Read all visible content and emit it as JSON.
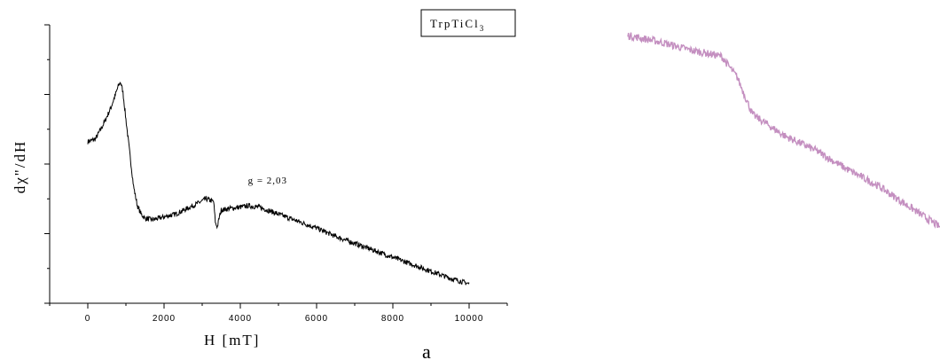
{
  "chart_data": [
    {
      "type": "line",
      "xlabel": "H  [mT]",
      "ylabel": "dχ\"/dH",
      "xlim": [
        -1000,
        11000
      ],
      "ylim": [
        0,
        10
      ],
      "x_ticks": [
        0,
        2000,
        4000,
        6000,
        8000,
        10000
      ],
      "x_tick_labels": [
        "0",
        "2000",
        "4000",
        "6000",
        "8000",
        "10000"
      ],
      "y_tick_labels_shown": false,
      "legend": {
        "text": "TrpTiCl",
        "subscript": "3",
        "position": "top-right"
      },
      "annotation": {
        "text": "g = 2,03",
        "x": 4200,
        "y": 4.3
      },
      "panel_label": "a",
      "series": [
        {
          "color": "#000000",
          "x": [
            0,
            200,
            400,
            600,
            700,
            800,
            860,
            920,
            1000,
            1100,
            1200,
            1300,
            1400,
            1500,
            1700,
            2000,
            2300,
            2600,
            2900,
            3100,
            3300,
            3350,
            3400,
            3450,
            3500,
            3700,
            4000,
            4200,
            4500,
            5000,
            5500,
            6000,
            6500,
            7000,
            7500,
            8000,
            8500,
            9000,
            9500,
            10000
          ],
          "y": [
            5.8,
            5.9,
            6.4,
            7.0,
            7.4,
            7.8,
            7.95,
            7.6,
            6.6,
            5.4,
            4.2,
            3.5,
            3.2,
            3.05,
            3.0,
            3.1,
            3.2,
            3.4,
            3.6,
            3.75,
            3.65,
            2.85,
            2.75,
            3.1,
            3.35,
            3.4,
            3.45,
            3.5,
            3.45,
            3.2,
            2.95,
            2.7,
            2.4,
            2.15,
            1.9,
            1.65,
            1.4,
            1.15,
            0.9,
            0.7
          ],
          "noise": 0.09
        }
      ]
    },
    {
      "type": "line",
      "series": [
        {
          "color": "#c48fc0",
          "x": [
            0,
            0.1,
            0.2,
            0.3,
            0.35,
            0.4,
            0.45,
            0.5,
            0.6,
            0.7,
            0.8,
            0.9,
            1.0
          ],
          "y": [
            1.0,
            0.97,
            0.93,
            0.9,
            0.8,
            0.62,
            0.57,
            0.52,
            0.45,
            0.36,
            0.28,
            0.18,
            0.08
          ],
          "noise": 0.018
        }
      ]
    }
  ]
}
